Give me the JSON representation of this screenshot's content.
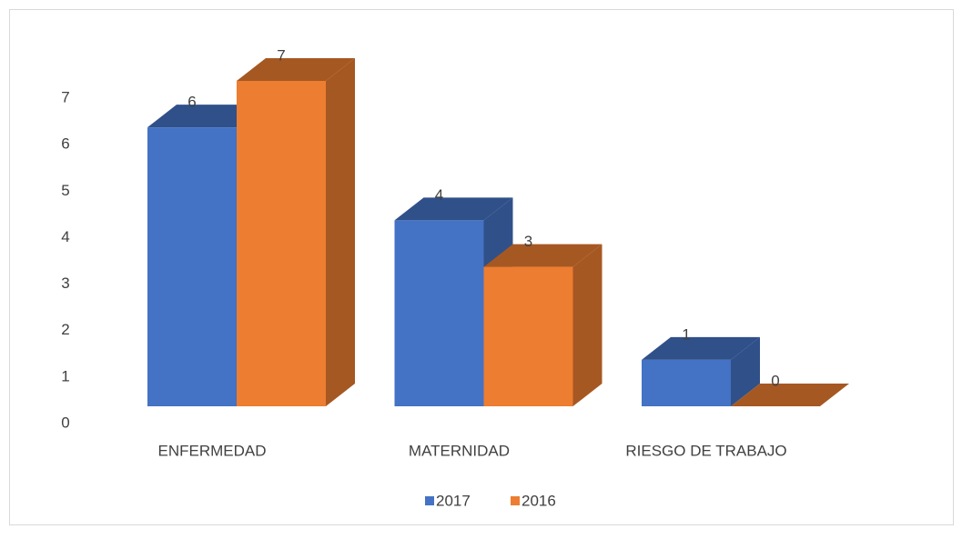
{
  "chart_data": {
    "type": "bar3d",
    "categories": [
      "ENFERMEDAD",
      "MATERNIDAD",
      "RIESGO DE TRABAJO"
    ],
    "series": [
      {
        "name": "2017",
        "color": "#4472c4",
        "values": [
          6,
          4,
          1
        ]
      },
      {
        "name": "2016",
        "color": "#ed7d31",
        "values": [
          7,
          3,
          0
        ]
      }
    ],
    "ylim": [
      0,
      7
    ],
    "yticks": [
      0,
      1,
      2,
      3,
      4,
      5,
      6,
      7
    ],
    "grid": false,
    "legend": "bottom"
  }
}
